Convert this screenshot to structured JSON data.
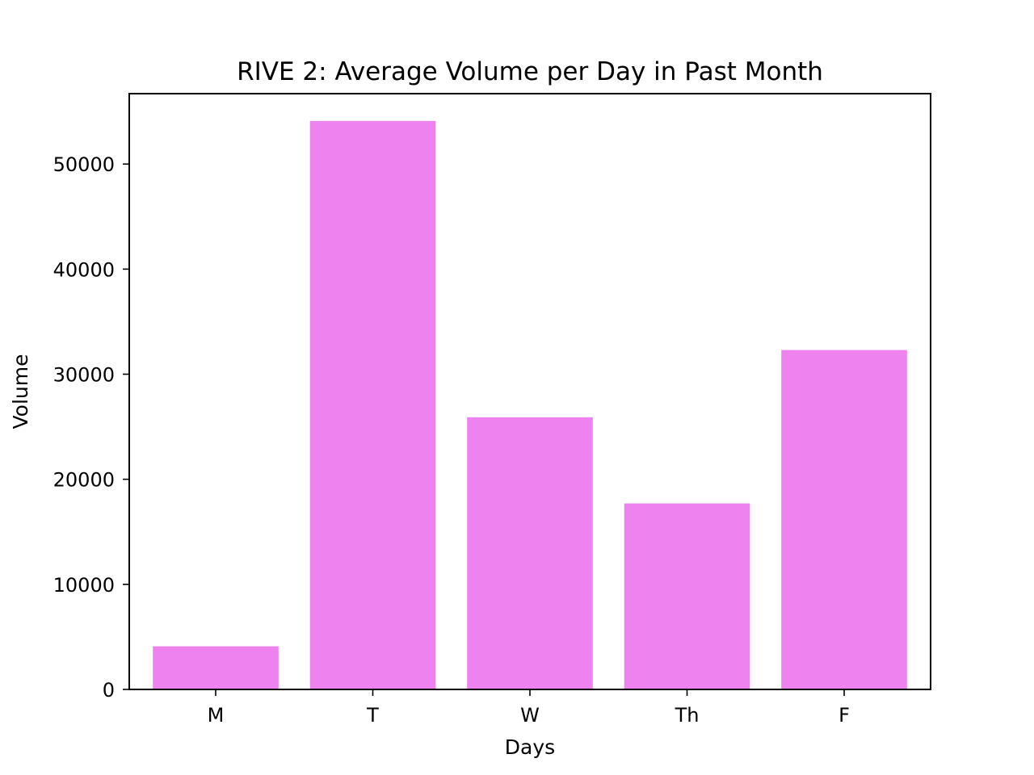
{
  "chart_data": {
    "type": "bar",
    "title": "RIVE 2: Average Volume per Day in Past Month",
    "xlabel": "Days",
    "ylabel": "Volume",
    "categories": [
      "M",
      "T",
      "W",
      "Th",
      "F"
    ],
    "values": [
      4100,
      54100,
      25900,
      17700,
      32300
    ],
    "ylim": [
      0,
      56700
    ],
    "yticks": [
      0,
      10000,
      20000,
      30000,
      40000,
      50000
    ],
    "bar_color": "#ee82ee",
    "grid": false,
    "legend": "none"
  }
}
